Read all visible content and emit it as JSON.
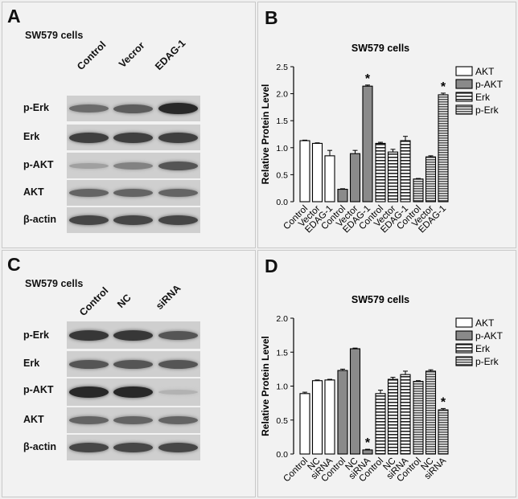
{
  "panels": [
    {
      "letter": "A",
      "cells": "SW579 cells",
      "lanes": [
        "Control",
        "Vecror",
        "EDAG-1"
      ],
      "rows": [
        {
          "label": "p-Erk",
          "levels": [
            0.55,
            0.65,
            1.0
          ]
        },
        {
          "label": "Erk",
          "levels": [
            0.85,
            0.85,
            0.85
          ]
        },
        {
          "label": "p-AKT",
          "levels": [
            0.2,
            0.4,
            0.7
          ]
        },
        {
          "label": "AKT",
          "levels": [
            0.6,
            0.6,
            0.6
          ]
        },
        {
          "label": "β-actin",
          "levels": [
            0.8,
            0.8,
            0.8
          ]
        }
      ]
    },
    {
      "letter": "C",
      "cells": "SW579 cells",
      "lanes": [
        "Control",
        "NC",
        "siRNA"
      ],
      "rows": [
        {
          "label": "p-Erk",
          "levels": [
            0.9,
            0.9,
            0.7
          ]
        },
        {
          "label": "Erk",
          "levels": [
            0.7,
            0.7,
            0.7
          ]
        },
        {
          "label": "p-AKT",
          "levels": [
            1.0,
            1.0,
            0.08
          ]
        },
        {
          "label": "AKT",
          "levels": [
            0.6,
            0.6,
            0.6
          ]
        },
        {
          "label": "β-actin",
          "levels": [
            0.8,
            0.8,
            0.8
          ]
        }
      ]
    }
  ],
  "chart_data": [
    {
      "letter": "B",
      "type": "bar",
      "title": "SW579 cells",
      "ylabel": "Relative Protein Level",
      "ylim": [
        0,
        2.5
      ],
      "yticks": [
        "0.0",
        "0.5",
        "1.0",
        "1.5",
        "2.0",
        "2.5"
      ],
      "categories": [
        "Control",
        "Vector",
        "EDAG-1"
      ],
      "series": [
        {
          "name": "AKT",
          "values": [
            1.13,
            1.08,
            0.85
          ],
          "errors": [
            0.01,
            0.01,
            0.1
          ],
          "star": [
            false,
            false,
            false
          ]
        },
        {
          "name": "p-AKT",
          "values": [
            0.23,
            0.89,
            2.14
          ],
          "errors": [
            0.01,
            0.06,
            0.02
          ],
          "star": [
            false,
            false,
            true
          ]
        },
        {
          "name": "Erk",
          "values": [
            1.08,
            0.92,
            1.13
          ],
          "errors": [
            0.02,
            0.05,
            0.08
          ],
          "star": [
            false,
            false,
            false
          ]
        },
        {
          "name": "p-Erk",
          "values": [
            0.42,
            0.83,
            1.98
          ],
          "errors": [
            0.01,
            0.02,
            0.03
          ],
          "star": [
            false,
            false,
            true
          ]
        }
      ],
      "star_label": "*",
      "legend": "right"
    },
    {
      "letter": "D",
      "type": "bar",
      "title": "SW579 cells",
      "ylabel": "Relative Protein Level",
      "ylim": [
        0,
        2.0
      ],
      "yticks": [
        "0.0",
        "0.5",
        "1.0",
        "1.5",
        "2.0"
      ],
      "categories": [
        "Control",
        "NC",
        "siRNA"
      ],
      "series": [
        {
          "name": "AKT",
          "values": [
            0.89,
            1.08,
            1.09
          ],
          "errors": [
            0.02,
            0.01,
            0.01
          ],
          "star": [
            false,
            false,
            false
          ]
        },
        {
          "name": "p-AKT",
          "values": [
            1.23,
            1.55,
            0.06
          ],
          "errors": [
            0.02,
            0.01,
            0.01
          ],
          "star": [
            false,
            false,
            true
          ]
        },
        {
          "name": "Erk",
          "values": [
            0.89,
            1.1,
            1.17
          ],
          "errors": [
            0.05,
            0.03,
            0.05
          ],
          "star": [
            false,
            false,
            false
          ]
        },
        {
          "name": "p-Erk",
          "values": [
            1.07,
            1.22,
            0.65
          ],
          "errors": [
            0.01,
            0.02,
            0.02
          ],
          "star": [
            false,
            false,
            true
          ]
        }
      ],
      "star_label": "*",
      "legend": "right"
    }
  ]
}
